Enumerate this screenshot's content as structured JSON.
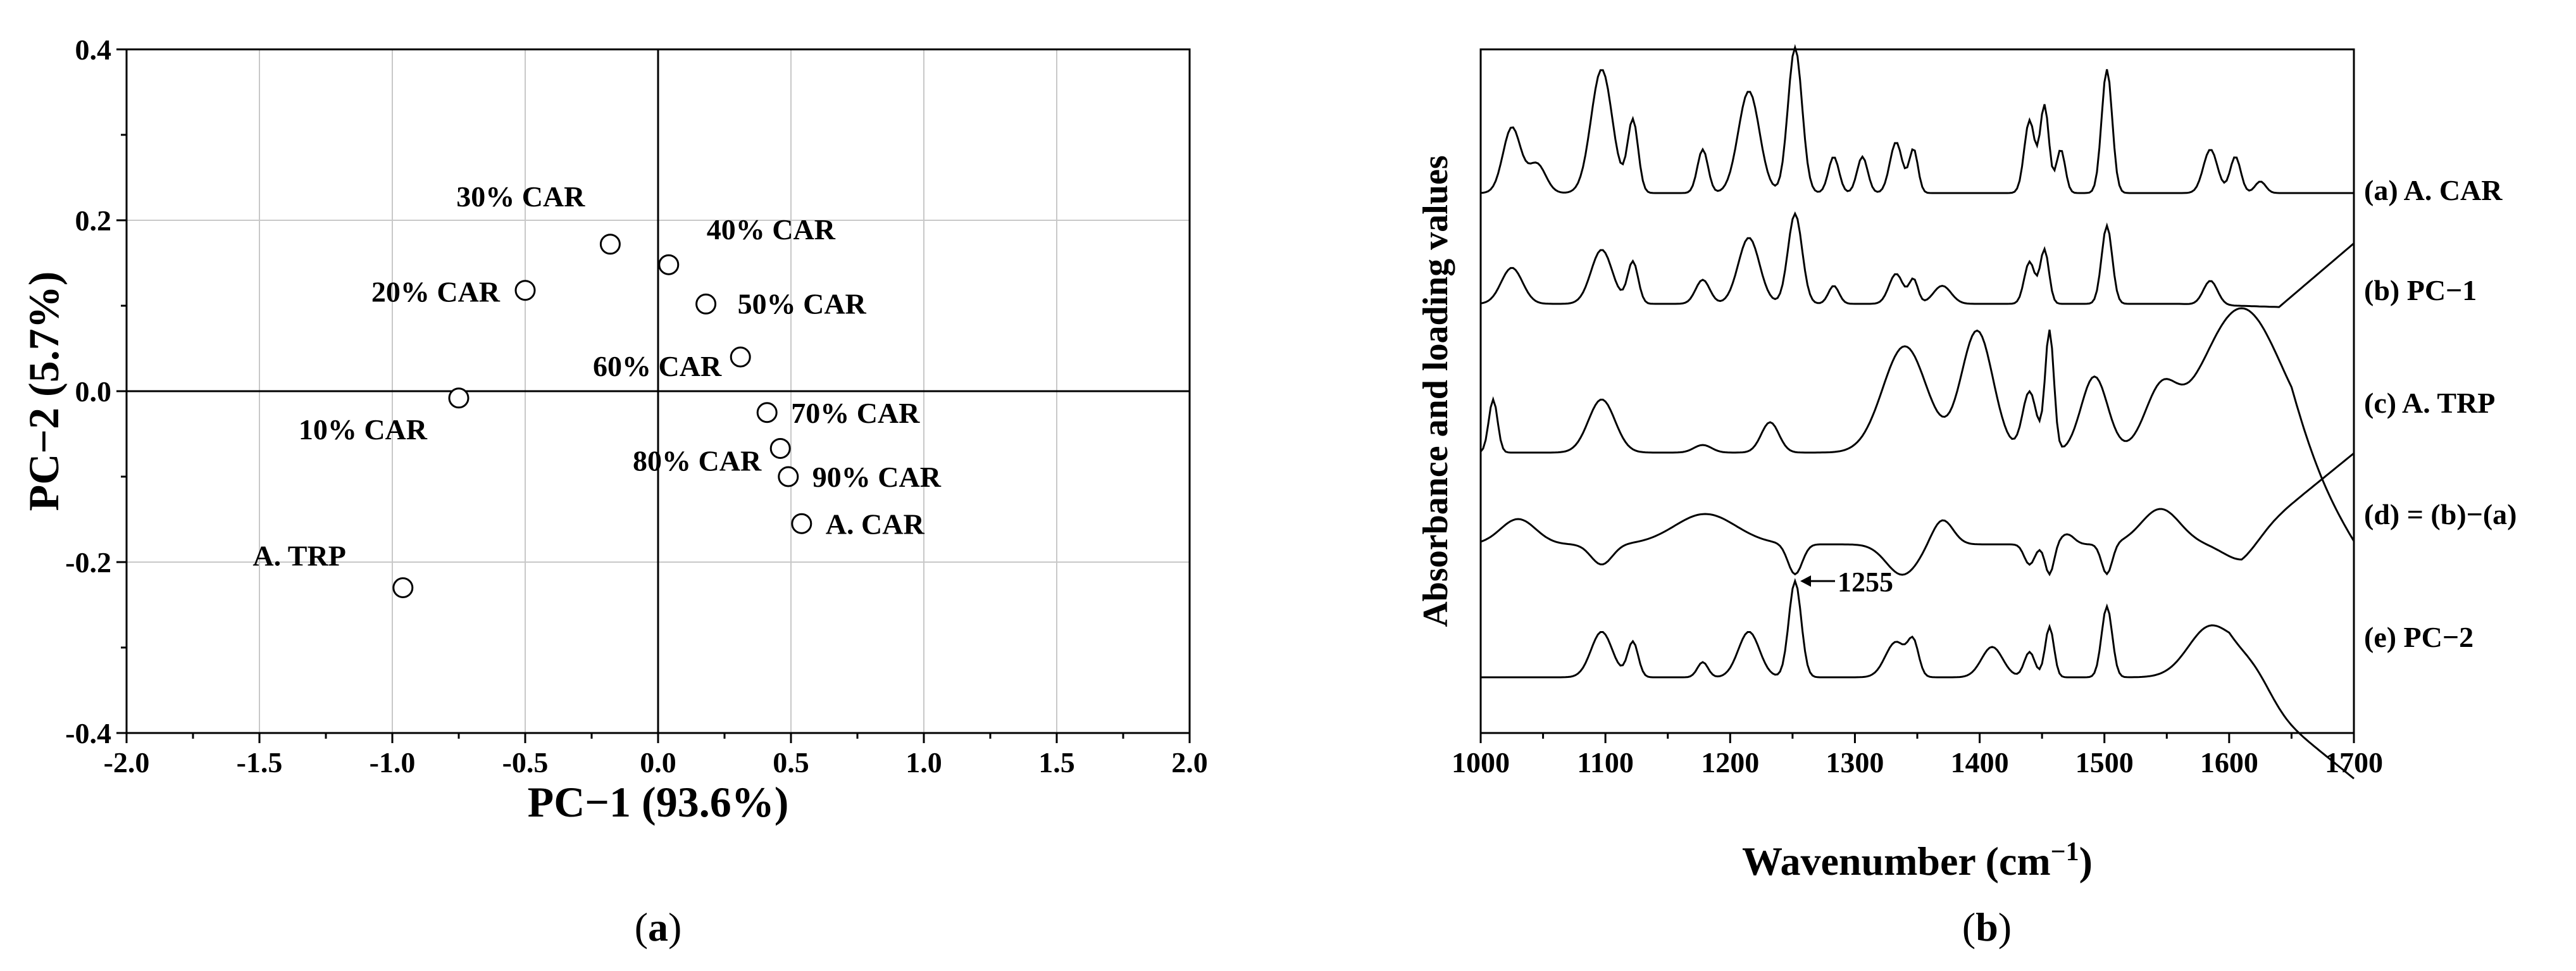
{
  "chart_data": [
    {
      "type": "scatter",
      "panel_label": "(a)",
      "panel_label_letter": "a",
      "xlabel": "PC−1 (93.6%)",
      "ylabel": "PC−2 (5.7%)",
      "xlim": [
        -2.0,
        2.0
      ],
      "ylim": [
        -0.4,
        0.4
      ],
      "xticks": [
        "-2.0",
        "-1.5",
        "-1.0",
        "-0.5",
        "0.0",
        "0.5",
        "1.0",
        "1.5",
        "2.0"
      ],
      "yticks": [
        "0.4",
        "0.2",
        "0.0",
        "-0.2",
        "-0.4"
      ],
      "grid": true,
      "points": [
        {
          "label": "A. TRP",
          "x": -0.96,
          "y": -0.23
        },
        {
          "label": "10% CAR",
          "x": -0.75,
          "y": -0.008
        },
        {
          "label": "20% CAR",
          "x": -0.5,
          "y": 0.118
        },
        {
          "label": "30% CAR",
          "x": -0.18,
          "y": 0.172
        },
        {
          "label": "40% CAR",
          "x": 0.04,
          "y": 0.148
        },
        {
          "label": "50% CAR",
          "x": 0.18,
          "y": 0.102
        },
        {
          "label": "60% CAR",
          "x": 0.31,
          "y": 0.04
        },
        {
          "label": "70% CAR",
          "x": 0.41,
          "y": -0.025
        },
        {
          "label": "80% CAR",
          "x": 0.46,
          "y": -0.067
        },
        {
          "label": "90% CAR",
          "x": 0.49,
          "y": -0.1
        },
        {
          "label": "A. CAR",
          "x": 0.54,
          "y": -0.155
        }
      ]
    },
    {
      "type": "line",
      "panel_label": "(b)",
      "panel_label_letter": "b",
      "xlabel": "Wavenumber (cm⁻¹)",
      "ylabel": "Absorbance and loading values",
      "xlim": [
        1000,
        1700
      ],
      "xticks": [
        "1000",
        "1100",
        "1200",
        "1300",
        "1400",
        "1500",
        "1600",
        "1700"
      ],
      "annotation": "1255",
      "annotation_x": 1255,
      "series": [
        {
          "name": "(a) A. CAR"
        },
        {
          "name": "(b) PC−1"
        },
        {
          "name": "(c) A. TRP"
        },
        {
          "name": "(d) = (b)−(a)"
        },
        {
          "name": "(e) PC−2"
        }
      ]
    }
  ]
}
